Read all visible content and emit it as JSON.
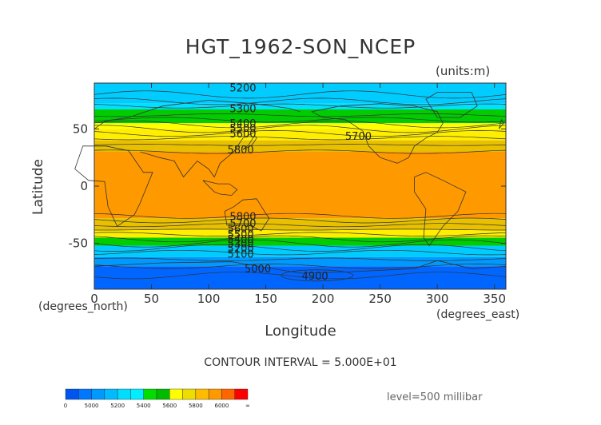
{
  "title": "HGT_1962-SON_NCEP",
  "units": "(units:m)",
  "chart_data": {
    "type": "heatmap",
    "description_kind": "global contour map of 500 mb geopotential height",
    "xlabel": "Longitude",
    "ylabel": "Latitude",
    "x_unit_label": "(degrees_east)",
    "y_unit_label": "(degrees_north)",
    "xlim": [
      0,
      360
    ],
    "ylim": [
      -90,
      90
    ],
    "x_ticks": [
      "0",
      "50",
      "100",
      "150",
      "200",
      "250",
      "300",
      "350"
    ],
    "x_tick_values": [
      0,
      50,
      100,
      150,
      200,
      250,
      300,
      350
    ],
    "y_ticks": [
      "50",
      "0",
      "-50"
    ],
    "y_tick_values": [
      50,
      0,
      -50
    ],
    "contour_interval_text": "CONTOUR INTERVAL = 5.000E+01",
    "level_text": "level=500 millibar",
    "zonal_bands": [
      {
        "lat_top": 90,
        "lat_bottom": 72,
        "color": "#00ccff"
      },
      {
        "lat_top": 72,
        "lat_bottom": 67,
        "color": "#00e0ff"
      },
      {
        "lat_top": 67,
        "lat_bottom": 55,
        "color": "#00cc00"
      },
      {
        "lat_top": 55,
        "lat_bottom": 50,
        "color": "#ffff00"
      },
      {
        "lat_top": 50,
        "lat_bottom": 40,
        "color": "#ffee00"
      },
      {
        "lat_top": 40,
        "lat_bottom": 30,
        "color": "#e8c000"
      },
      {
        "lat_top": 30,
        "lat_bottom": -28,
        "color": "#ff9900"
      },
      {
        "lat_top": -28,
        "lat_bottom": -38,
        "color": "#e8c000"
      },
      {
        "lat_top": -38,
        "lat_bottom": -45,
        "color": "#ffee00"
      },
      {
        "lat_top": -45,
        "lat_bottom": -52,
        "color": "#00cc00"
      },
      {
        "lat_top": -52,
        "lat_bottom": -62,
        "color": "#00ccff"
      },
      {
        "lat_top": -62,
        "lat_bottom": -70,
        "color": "#0099ff"
      },
      {
        "lat_top": -70,
        "lat_bottom": -90,
        "color": "#0066ff"
      }
    ],
    "contour_labels": [
      {
        "text": "5200",
        "lon": 130,
        "lat": 86
      },
      {
        "text": "5300",
        "lon": 130,
        "lat": 68
      },
      {
        "text": "5400",
        "lon": 130,
        "lat": 55
      },
      {
        "text": "5500",
        "lon": 130,
        "lat": 51
      },
      {
        "text": "5600",
        "lon": 130,
        "lat": 46
      },
      {
        "text": "5700",
        "lon": 231,
        "lat": 44
      },
      {
        "text": "5800",
        "lon": 128,
        "lat": 32
      },
      {
        "text": "5800",
        "lon": 130,
        "lat": -26
      },
      {
        "text": "5700",
        "lon": 130,
        "lat": -32
      },
      {
        "text": "5600",
        "lon": 128,
        "lat": -37
      },
      {
        "text": "5500",
        "lon": 128,
        "lat": -42
      },
      {
        "text": "5400",
        "lon": 128,
        "lat": -46
      },
      {
        "text": "5300",
        "lon": 128,
        "lat": -50
      },
      {
        "text": "5200",
        "lon": 128,
        "lat": -54
      },
      {
        "text": "5100",
        "lon": 128,
        "lat": -59
      },
      {
        "text": "5000",
        "lon": 143,
        "lat": -72
      },
      {
        "text": "4900",
        "lon": 193,
        "lat": -78
      }
    ],
    "legend": {
      "colors": [
        "#0055ee",
        "#0077ff",
        "#0099ff",
        "#00bbff",
        "#00ddff",
        "#00eeff",
        "#00dd00",
        "#00bb00",
        "#ffff00",
        "#eedd00",
        "#ffbb00",
        "#ff9900",
        "#ff6600",
        "#ff0000"
      ],
      "labels": [
        "0",
        "5000",
        "5200",
        "5400",
        "5600",
        "5800",
        "6000",
        "∞"
      ]
    }
  }
}
